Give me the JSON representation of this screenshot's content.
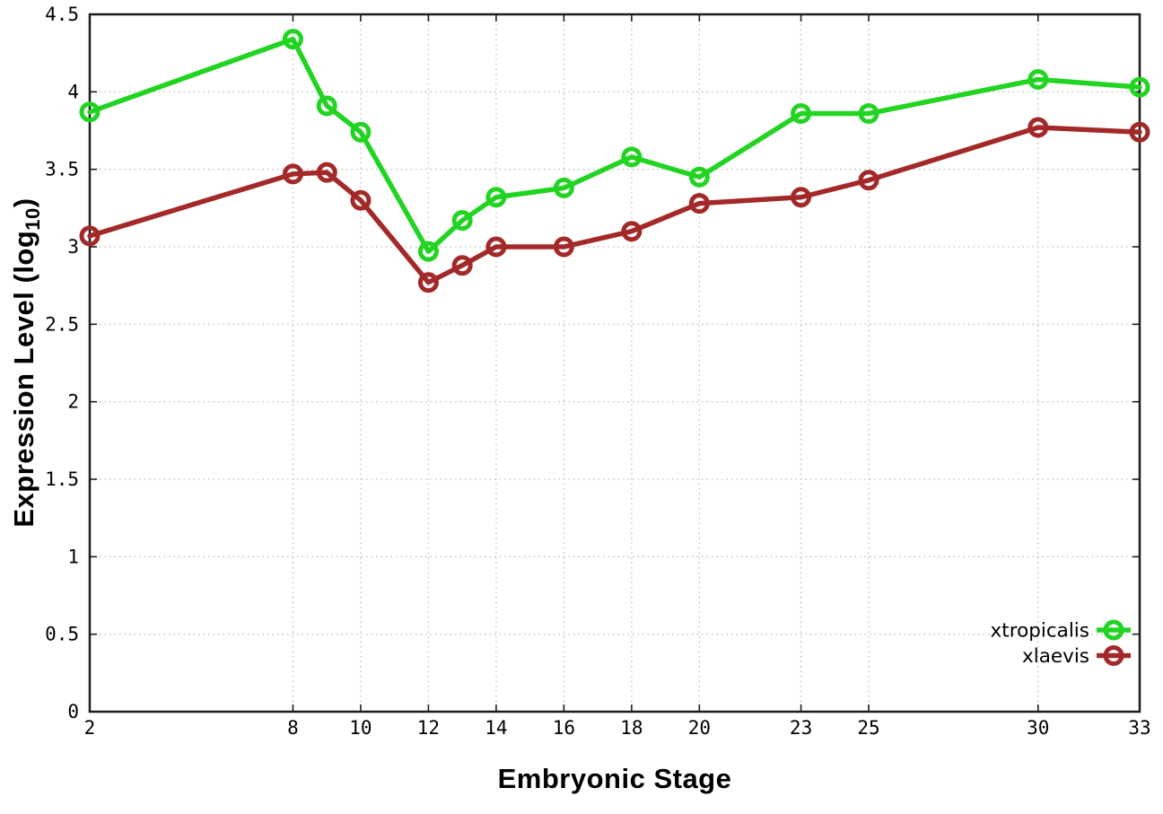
{
  "page": {
    "background": "#ffffff",
    "axis_color": "#1c1c1c",
    "grid_color": "#bdbdbd",
    "tick_label_color": "#000000"
  },
  "chart_data": {
    "type": "line",
    "title": "",
    "xlabel": "Embryonic Stage",
    "ylabel": "Expression Level (log10)",
    "ylabel_prefix": "Expression Level (log",
    "ylabel_sub": "10",
    "ylabel_suffix": ")",
    "xlim": [
      2,
      33
    ],
    "ylim": [
      0,
      4.5
    ],
    "xticks": [
      2,
      8,
      10,
      12,
      14,
      16,
      18,
      20,
      23,
      25,
      30,
      33
    ],
    "xtick_labels": [
      "2",
      "8",
      "10",
      "12",
      "14",
      "16",
      "18",
      "20",
      "23",
      "25",
      "30",
      "33"
    ],
    "yticks": [
      0,
      0.5,
      1,
      1.5,
      2,
      2.5,
      3,
      3.5,
      4,
      4.5
    ],
    "ytick_labels": [
      "0",
      "0.5",
      "1",
      "1.5",
      "2",
      "2.5",
      "3",
      "3.5",
      "4",
      "4.5"
    ],
    "grid": true,
    "legend_position": "inside bottom-right",
    "marker": "open-circle",
    "x": [
      2,
      8,
      9,
      10,
      12,
      13,
      14,
      16,
      18,
      20,
      23,
      25,
      30,
      33
    ],
    "series": [
      {
        "name": "xtropicalis",
        "color": "#22d422",
        "values": [
          3.87,
          4.34,
          3.91,
          3.74,
          2.97,
          3.17,
          3.32,
          3.38,
          3.58,
          3.45,
          3.86,
          3.86,
          4.08,
          4.03
        ]
      },
      {
        "name": "xlaevis",
        "color": "#a32929",
        "values": [
          3.07,
          3.47,
          3.48,
          3.3,
          2.77,
          2.88,
          3.0,
          3.0,
          3.1,
          3.28,
          3.32,
          3.43,
          3.77,
          3.74
        ]
      }
    ]
  }
}
